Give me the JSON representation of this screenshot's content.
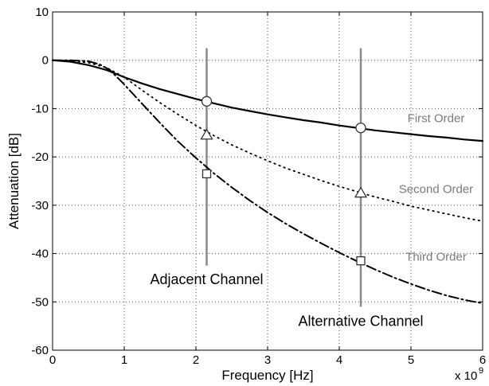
{
  "chart_data": {
    "type": "line",
    "xlabel": "Frequency [Hz]",
    "ylabel": "Attenuation [dB]",
    "xlim": [
      0,
      6
    ],
    "ylim": [
      -60,
      10
    ],
    "x_multiplier_label": "x 10",
    "x_multiplier_exponent": "9",
    "xticks": [
      0,
      1,
      2,
      3,
      4,
      5,
      6
    ],
    "yticks": [
      10,
      0,
      -10,
      -20,
      -30,
      -40,
      -50,
      -60
    ],
    "xtick_labels": [
      "0",
      "1",
      "2",
      "3",
      "4",
      "5",
      "6"
    ],
    "ytick_labels": [
      "10",
      "0",
      "-10",
      "-20",
      "-30",
      "-40",
      "-50",
      "-60"
    ],
    "grid": true,
    "series": [
      {
        "name": "First Order",
        "style": "solid",
        "x": [
          0,
          0.25,
          0.5,
          0.75,
          1.0,
          1.25,
          1.5,
          1.75,
          2.0,
          2.25,
          2.5,
          2.75,
          3.0,
          3.25,
          3.5,
          3.75,
          4.0,
          4.25,
          4.5,
          4.75,
          5.0,
          5.25,
          5.5,
          5.75,
          6.0
        ],
        "y": [
          0,
          -0.3,
          -1.0,
          -2.0,
          -3.5,
          -4.8,
          -6.0,
          -7.0,
          -8.0,
          -8.9,
          -9.8,
          -10.5,
          -11.2,
          -11.8,
          -12.4,
          -12.9,
          -13.5,
          -14.0,
          -14.5,
          -14.9,
          -15.3,
          -15.7,
          -16.0,
          -16.4,
          -16.7
        ]
      },
      {
        "name": "Second Order",
        "style": "dotted",
        "x": [
          0,
          0.25,
          0.5,
          0.75,
          1.0,
          1.25,
          1.5,
          1.75,
          2.0,
          2.25,
          2.5,
          2.75,
          3.0,
          3.25,
          3.5,
          3.75,
          4.0,
          4.25,
          4.5,
          4.75,
          5.0,
          5.25,
          5.5,
          5.75,
          6.0
        ],
        "y": [
          0,
          -0.1,
          -0.5,
          -1.5,
          -3.5,
          -6.2,
          -8.8,
          -11.2,
          -13.5,
          -15.6,
          -17.5,
          -19.2,
          -20.8,
          -22.3,
          -23.6,
          -24.9,
          -26.1,
          -27.2,
          -28.3,
          -29.2,
          -30.2,
          -31.0,
          -31.8,
          -32.6,
          -33.3
        ]
      },
      {
        "name": "Third Order",
        "style": "dashdot",
        "x": [
          0,
          0.25,
          0.5,
          0.65,
          0.8,
          1.0,
          1.25,
          1.5,
          1.75,
          2.0,
          2.25,
          2.5,
          2.75,
          3.0,
          3.25,
          3.5,
          3.75,
          4.0,
          4.25,
          4.5,
          4.75,
          5.0,
          5.25,
          5.5,
          5.75,
          6.0
        ],
        "y": [
          0,
          0,
          -0.2,
          -0.8,
          -2.0,
          -5.0,
          -9.0,
          -13.0,
          -16.8,
          -20.2,
          -23.4,
          -26.3,
          -29.0,
          -31.5,
          -33.8,
          -35.9,
          -37.9,
          -39.8,
          -41.6,
          -43.3,
          -44.9,
          -46.3,
          -47.6,
          -48.7,
          -49.6,
          -50.3
        ]
      }
    ],
    "channel_markers": [
      {
        "label": "Adjacent Channel",
        "x": 2.15,
        "y_range": [
          -42.5,
          2.5
        ],
        "points": [
          {
            "series": "First Order",
            "y": -8.5,
            "symbol": "circle"
          },
          {
            "series": "Second Order",
            "y": -15.5,
            "symbol": "triangle"
          },
          {
            "series": "Third Order",
            "y": -23.5,
            "symbol": "square"
          }
        ]
      },
      {
        "label": "Alternative Channel",
        "x": 4.3,
        "y_range": [
          -51,
          2.5
        ],
        "points": [
          {
            "series": "First Order",
            "y": -14.0,
            "symbol": "circle"
          },
          {
            "series": "Second Order",
            "y": -27.5,
            "symbol": "triangle"
          },
          {
            "series": "Third Order",
            "y": -41.5,
            "symbol": "square"
          }
        ]
      }
    ],
    "series_annotations": [
      {
        "text": "First Order",
        "x": 5.35,
        "y": -12.8
      },
      {
        "text": "Second Order",
        "x": 5.35,
        "y": -27.5
      },
      {
        "text": "Third Order",
        "x": 5.35,
        "y": -41.5
      }
    ],
    "channel_annotations": [
      {
        "text": "Adjacent Channel",
        "x": 2.15,
        "y": -46.3
      },
      {
        "text": "Alternative Channel",
        "x": 4.3,
        "y": -55.0
      }
    ],
    "colors": {
      "curve": "#000000",
      "marker_line": "#8a8a8a",
      "grid": "#555555",
      "annotation_grey": "#7a7a7a"
    }
  }
}
